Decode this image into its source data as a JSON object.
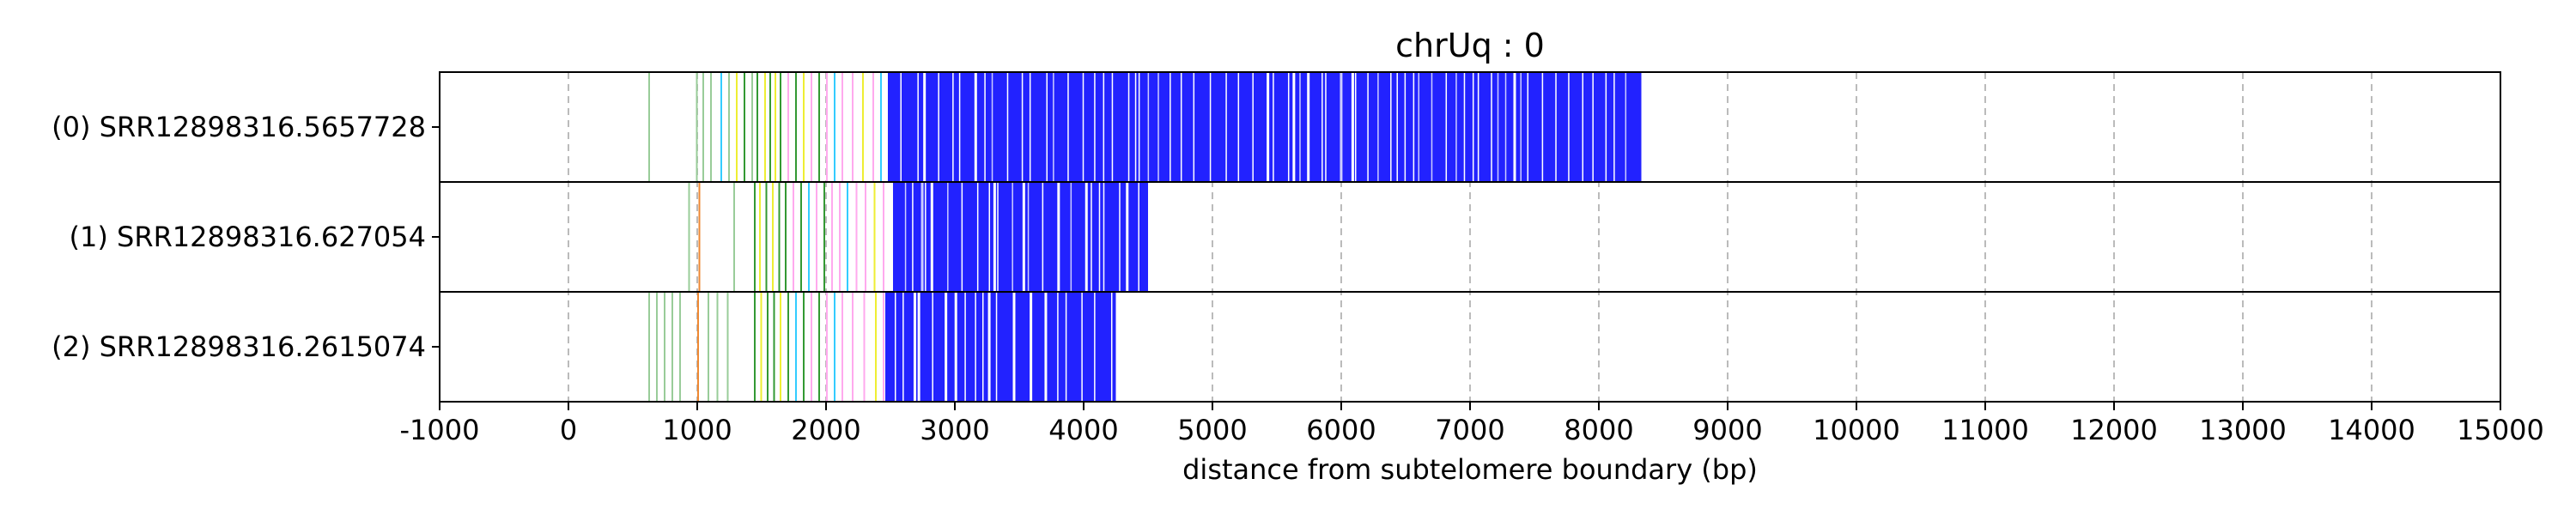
{
  "chart_data": {
    "type": "read-track",
    "title": "chrUq : 0",
    "xlabel": "distance from subtelomere boundary (bp)",
    "xlim": [
      -1000,
      15000
    ],
    "xticks": [
      -1000,
      0,
      1000,
      2000,
      3000,
      4000,
      5000,
      6000,
      7000,
      8000,
      9000,
      10000,
      11000,
      12000,
      13000,
      14000,
      15000
    ],
    "grid": "vertical dashed at x ticks",
    "colors": {
      "dense": "#2222ff",
      "light": "#ccccff",
      "green": "#339933",
      "lightgreen": "#99cc99",
      "yellow": "#eeee33",
      "pink": "#ffaaee",
      "cyan": "#33ccff",
      "orange": "#ee8833",
      "grid": "#bbbbbb"
    },
    "reads": [
      {
        "label": "(0) SRR12898316.5657728",
        "end": 8330,
        "scatter": [
          {
            "x": 620,
            "color": "lightgreen"
          },
          {
            "x": 990,
            "color": "lightgreen"
          },
          {
            "x": 1040,
            "color": "lightgreen"
          },
          {
            "x": 1100,
            "color": "lightgreen"
          },
          {
            "x": 1180,
            "color": "cyan"
          },
          {
            "x": 1240,
            "color": "lightgreen"
          },
          {
            "x": 1300,
            "color": "yellow"
          },
          {
            "x": 1360,
            "color": "green"
          },
          {
            "x": 1420,
            "color": "lightgreen"
          },
          {
            "x": 1460,
            "color": "green"
          },
          {
            "x": 1520,
            "color": "yellow"
          },
          {
            "x": 1560,
            "color": "green"
          },
          {
            "x": 1600,
            "color": "yellow"
          },
          {
            "x": 1640,
            "color": "green"
          },
          {
            "x": 1700,
            "color": "pink"
          },
          {
            "x": 1760,
            "color": "green"
          },
          {
            "x": 1820,
            "color": "yellow"
          },
          {
            "x": 1880,
            "color": "pink"
          },
          {
            "x": 1940,
            "color": "green"
          },
          {
            "x": 2000,
            "color": "pink"
          },
          {
            "x": 2060,
            "color": "cyan"
          },
          {
            "x": 2120,
            "color": "pink"
          },
          {
            "x": 2200,
            "color": "pink"
          },
          {
            "x": 2280,
            "color": "yellow"
          },
          {
            "x": 2360,
            "color": "pink"
          },
          {
            "x": 2420,
            "color": "cyan"
          }
        ],
        "dense_start": 2480
      },
      {
        "label": "(1) SRR12898316.627054",
        "end": 4500,
        "scatter": [
          {
            "x": 930,
            "color": "lightgreen"
          },
          {
            "x": 1010,
            "color": "orange"
          },
          {
            "x": 1280,
            "color": "lightgreen"
          },
          {
            "x": 1440,
            "color": "green"
          },
          {
            "x": 1480,
            "color": "yellow"
          },
          {
            "x": 1530,
            "color": "green"
          },
          {
            "x": 1580,
            "color": "yellow"
          },
          {
            "x": 1630,
            "color": "green"
          },
          {
            "x": 1680,
            "color": "green"
          },
          {
            "x": 1740,
            "color": "pink"
          },
          {
            "x": 1800,
            "color": "green"
          },
          {
            "x": 1860,
            "color": "cyan"
          },
          {
            "x": 1920,
            "color": "pink"
          },
          {
            "x": 1980,
            "color": "green"
          },
          {
            "x": 2040,
            "color": "pink"
          },
          {
            "x": 2100,
            "color": "pink"
          },
          {
            "x": 2160,
            "color": "cyan"
          },
          {
            "x": 2230,
            "color": "pink"
          },
          {
            "x": 2300,
            "color": "pink"
          },
          {
            "x": 2370,
            "color": "yellow"
          },
          {
            "x": 2440,
            "color": "pink"
          }
        ],
        "dense_start": 2520
      },
      {
        "label": "(2) SRR12898316.2615074",
        "end": 4250,
        "scatter": [
          {
            "x": 620,
            "color": "lightgreen"
          },
          {
            "x": 680,
            "color": "lightgreen"
          },
          {
            "x": 740,
            "color": "lightgreen"
          },
          {
            "x": 800,
            "color": "lightgreen"
          },
          {
            "x": 860,
            "color": "lightgreen"
          },
          {
            "x": 1000,
            "color": "orange"
          },
          {
            "x": 1080,
            "color": "lightgreen"
          },
          {
            "x": 1150,
            "color": "lightgreen"
          },
          {
            "x": 1230,
            "color": "lightgreen"
          },
          {
            "x": 1440,
            "color": "green"
          },
          {
            "x": 1490,
            "color": "yellow"
          },
          {
            "x": 1540,
            "color": "green"
          },
          {
            "x": 1590,
            "color": "green"
          },
          {
            "x": 1640,
            "color": "yellow"
          },
          {
            "x": 1700,
            "color": "green"
          },
          {
            "x": 1760,
            "color": "cyan"
          },
          {
            "x": 1820,
            "color": "green"
          },
          {
            "x": 1880,
            "color": "pink"
          },
          {
            "x": 1940,
            "color": "green"
          },
          {
            "x": 2000,
            "color": "pink"
          },
          {
            "x": 2060,
            "color": "cyan"
          },
          {
            "x": 2120,
            "color": "pink"
          },
          {
            "x": 2200,
            "color": "pink"
          },
          {
            "x": 2290,
            "color": "pink"
          },
          {
            "x": 2380,
            "color": "yellow"
          },
          {
            "x": 2440,
            "color": "pink"
          },
          {
            "x": 3620,
            "color": "green"
          },
          {
            "x": 3920,
            "color": "green"
          }
        ],
        "dense_start": 2460
      }
    ]
  }
}
